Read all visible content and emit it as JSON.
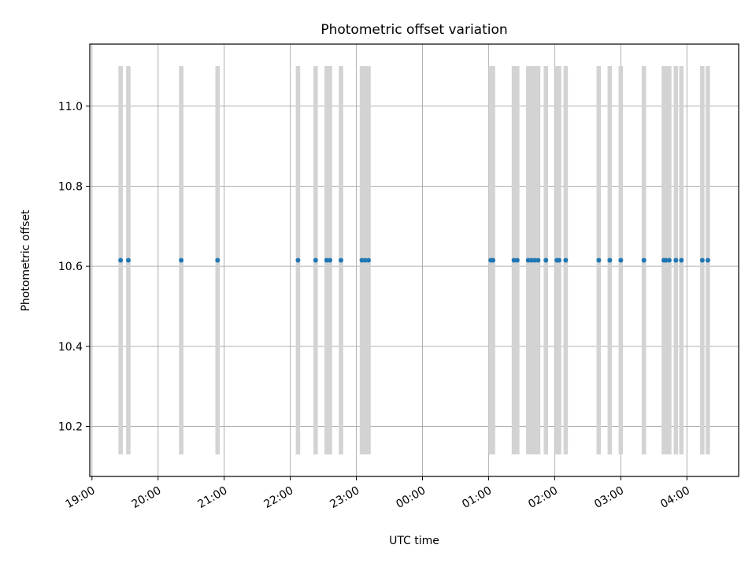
{
  "chart_data": {
    "type": "scatter",
    "title": "Photometric offset variation",
    "xlabel": "UTC time",
    "ylabel": "Photometric offset",
    "x_axis": {
      "kind": "time",
      "range": [
        "18:58",
        "04:47"
      ],
      "tick_labels": [
        "19:00",
        "20:00",
        "21:00",
        "22:00",
        "23:00",
        "00:00",
        "01:00",
        "02:00",
        "03:00",
        "04:00"
      ],
      "tick_label_rotation_deg": 30
    },
    "y_axis": {
      "range": [
        10.075,
        11.155
      ],
      "ticks": [
        10.2,
        10.4,
        10.6,
        10.8,
        11.0
      ],
      "tick_labels": [
        "10.2",
        "10.4",
        "10.6",
        "10.8",
        "11.0"
      ]
    },
    "grid": true,
    "colors": {
      "points": "#1f77b4",
      "exposure_bars": "#d3d3d3",
      "grid": "#b0b0b0",
      "axes": "#000000"
    },
    "exposure_bars": {
      "y_range": [
        10.13,
        11.1
      ],
      "intervals": [
        [
          "19:24",
          "19:28"
        ],
        [
          "19:31",
          "19:35"
        ],
        [
          "20:19",
          "20:23"
        ],
        [
          "20:52",
          "20:56"
        ],
        [
          "22:05",
          "22:09"
        ],
        [
          "22:21",
          "22:25"
        ],
        [
          "22:31",
          "22:35"
        ],
        [
          "22:34",
          "22:38"
        ],
        [
          "22:44",
          "22:48"
        ],
        [
          "23:03",
          "23:07"
        ],
        [
          "23:06",
          "23:10"
        ],
        [
          "23:09",
          "23:13"
        ],
        [
          "01:00",
          "01:04"
        ],
        [
          "01:02",
          "01:06"
        ],
        [
          "01:21",
          "01:25"
        ],
        [
          "01:24",
          "01:28"
        ],
        [
          "01:34",
          "01:38"
        ],
        [
          "01:37",
          "01:41"
        ],
        [
          "01:40",
          "01:44"
        ],
        [
          "01:43",
          "01:47"
        ],
        [
          "01:50",
          "01:54"
        ],
        [
          "02:00",
          "02:04"
        ],
        [
          "02:02",
          "02:06"
        ],
        [
          "02:08",
          "02:12"
        ],
        [
          "02:38",
          "02:42"
        ],
        [
          "02:48",
          "02:52"
        ],
        [
          "02:58",
          "03:02"
        ],
        [
          "03:19",
          "03:23"
        ],
        [
          "03:37",
          "03:41"
        ],
        [
          "03:39",
          "03:43"
        ],
        [
          "03:42",
          "03:46"
        ],
        [
          "03:48",
          "03:52"
        ],
        [
          "03:53",
          "03:57"
        ],
        [
          "04:12",
          "04:16"
        ],
        [
          "04:17",
          "04:21"
        ]
      ]
    },
    "series": [
      {
        "x": [
          "19:26",
          "19:33",
          "20:21",
          "20:54",
          "22:07",
          "22:23",
          "22:33",
          "22:36",
          "22:46",
          "23:05",
          "23:08",
          "23:11",
          "01:02",
          "01:04",
          "01:23",
          "01:26",
          "01:36",
          "01:39",
          "01:42",
          "01:45",
          "01:52",
          "02:02",
          "02:04",
          "02:10",
          "02:40",
          "02:50",
          "03:00",
          "03:21",
          "03:39",
          "03:41",
          "03:44",
          "03:50",
          "03:55",
          "04:14",
          "04:19"
        ],
        "y": [
          10.615,
          10.615,
          10.615,
          10.615,
          10.615,
          10.615,
          10.615,
          10.615,
          10.615,
          10.615,
          10.615,
          10.615,
          10.615,
          10.615,
          10.615,
          10.615,
          10.615,
          10.615,
          10.615,
          10.615,
          10.615,
          10.615,
          10.615,
          10.615,
          10.615,
          10.615,
          10.615,
          10.615,
          10.615,
          10.615,
          10.615,
          10.615,
          10.615,
          10.615,
          10.615
        ]
      }
    ]
  }
}
